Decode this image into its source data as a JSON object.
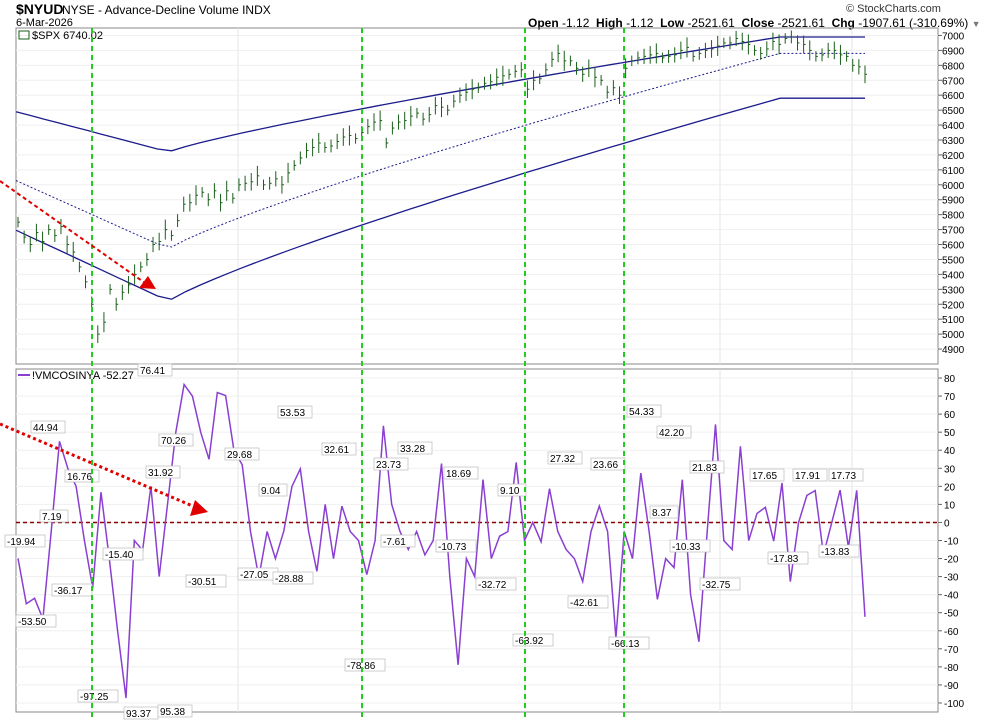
{
  "header": {
    "symbol": "$NYUD",
    "name": "NYSE - Advance-Decline Volume INDX",
    "date": "6-Mar-2026",
    "copyright": "© StockCharts.com",
    "ohlc": {
      "open_label": "Open",
      "open": "-1.12",
      "high_label": "High",
      "high": "-1.12",
      "low_label": "Low",
      "low": "-2521.61",
      "close_label": "Close",
      "close": "-2521.61",
      "chg_label": "Chg",
      "chg": "-1907.61 (-310.69%)"
    }
  },
  "colors": {
    "price_bars": "#1a5e1a",
    "bands": "#1c1c8c",
    "oscillator": "#8a3fd1",
    "marker_lines": "#22cc22",
    "zero_line": "#8b0000",
    "arrow": "#e00000"
  },
  "chart_data": [
    {
      "type": "line",
      "title": "$SPX 6740.02",
      "legend_label": "$SPX",
      "legend_value": "6740.02",
      "ylim": [
        4800,
        7050
      ],
      "yticks": [
        4900,
        5000,
        5100,
        5200,
        5300,
        5400,
        5500,
        5600,
        5700,
        5800,
        5900,
        6000,
        6100,
        6200,
        6300,
        6400,
        6500,
        6600,
        6700,
        6800,
        6900,
        7000
      ],
      "series": [
        {
          "name": "$SPX",
          "values": [
            5750,
            5650,
            5600,
            5680,
            5620,
            5700,
            5660,
            5720,
            5600,
            5550,
            5450,
            5350,
            5200,
            5000,
            5080,
            5300,
            5200,
            5280,
            5330,
            5400,
            5450,
            5500,
            5600,
            5620,
            5700,
            5660,
            5760,
            5870,
            5880,
            5930,
            5950,
            5900,
            5960,
            5880,
            5960,
            5910,
            6000,
            6010,
            6020,
            6060,
            6000,
            6010,
            6040,
            6000,
            6080,
            6130,
            6180,
            6230,
            6250,
            6280,
            6250,
            6260,
            6290,
            6320,
            6330,
            6310,
            6350,
            6390,
            6420,
            6430,
            6280,
            6380,
            6420,
            6430,
            6460,
            6480,
            6440,
            6470,
            6530,
            6520,
            6500,
            6560,
            6600,
            6620,
            6640,
            6650,
            6680,
            6690,
            6720,
            6730,
            6740,
            6760,
            6770,
            6640,
            6700,
            6710,
            6770,
            6840,
            6880,
            6830,
            6830,
            6780,
            6740,
            6780,
            6720,
            6700,
            6620,
            6650,
            6600,
            6780,
            6830,
            6850,
            6860,
            6870,
            6880,
            6850,
            6860,
            6870,
            6900,
            6920,
            6860,
            6880,
            6900,
            6910,
            6930,
            6950,
            6950,
            6980,
            6960,
            6940,
            6900,
            6880,
            6910,
            6960,
            6940,
            6980,
            6990,
            6950,
            6940,
            6900,
            6860,
            6870,
            6900,
            6900,
            6870,
            6860,
            6800,
            6790,
            6740
          ]
        },
        {
          "name": "upper band",
          "ymin_to_max": [
            6220,
            6990
          ]
        },
        {
          "name": "middle band",
          "ymin_to_max": [
            5570,
            6880
          ]
        },
        {
          "name": "lower band",
          "ymin_to_max": [
            5220,
            6580
          ]
        }
      ]
    },
    {
      "type": "line",
      "title": "!VMCOSINYA -52.27",
      "legend_label": "!VMCOSINYA",
      "legend_value": "-52.27",
      "ylim": [
        -105,
        85
      ],
      "yticks": [
        80,
        70,
        60,
        50,
        40,
        30,
        20,
        10,
        0,
        -10,
        -20,
        -30,
        -40,
        -50,
        -60,
        -70,
        -80,
        -90,
        -100
      ],
      "reference_line": 0,
      "series": [
        {
          "name": "!VMCOSINYA",
          "values": [
            -19.94,
            -45,
            -42,
            -53.5,
            -5,
            44.94,
            30,
            20,
            -10,
            -36.17,
            16.76,
            -20,
            -60,
            -97.25,
            -10,
            -15.4,
            20,
            -30,
            10,
            50,
            76.41,
            70,
            50,
            35,
            72,
            70.26,
            40,
            31.92,
            -5,
            -30.51,
            -5,
            -20,
            -5,
            20,
            29.68,
            -5,
            -27.05,
            10,
            -20,
            9.04,
            -5,
            -10,
            -28.88,
            -10,
            53.53,
            10,
            -5,
            -15,
            -5,
            -18,
            -10,
            32.61,
            -30,
            -78.86,
            -20,
            -30,
            23.73,
            -20,
            -7.61,
            -5,
            33.28,
            -10,
            0,
            -10.73,
            18.69,
            -5,
            -15,
            -20,
            -32.72,
            -5,
            9.1,
            -5,
            -63.92,
            -5,
            -20,
            27.32,
            -5,
            -42.61,
            -20,
            -25,
            23.66,
            -40,
            -66.13,
            -5,
            54.33,
            -10,
            -15,
            42.2,
            -10,
            5,
            8.37,
            -10.33,
            21.83,
            -32.75,
            0,
            15,
            17.65,
            -17.83,
            0,
            17.91,
            -13.83,
            17.73,
            -52.27
          ]
        }
      ],
      "annotations": [
        "44.94",
        "7.19",
        "16.76",
        "-19.94",
        "-53.50",
        "-36.17",
        "-15.40",
        "-97.25",
        "76.41",
        "70.26",
        "31.92",
        "-30.51",
        "29.68",
        "-27.05",
        "9.04",
        "-28.88",
        "53.53",
        "32.61",
        "-78.86",
        "23.73",
        "-7.61",
        "33.28",
        "-10.73",
        "18.69",
        "-32.72",
        "9.10",
        "-63.92",
        "27.32",
        "-42.61",
        "23.66",
        "-66.13",
        "54.33",
        "42.20",
        "8.37",
        "-10.33",
        "21.83",
        "-32.75",
        "17.65",
        "-17.83",
        "17.91",
        "-13.83",
        "17.73",
        "93.37",
        "95.38"
      ]
    }
  ]
}
